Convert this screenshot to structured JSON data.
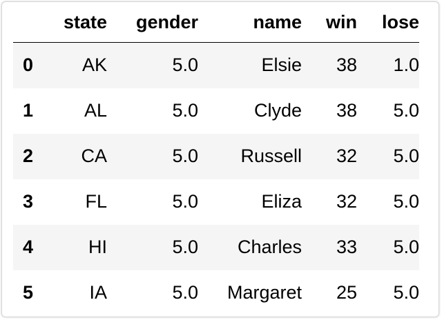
{
  "table": {
    "columns": [
      "state",
      "gender",
      "name",
      "win",
      "lose"
    ],
    "rows": [
      {
        "index": "0",
        "state": "AK",
        "gender": "5.0",
        "name": "Elsie",
        "win": "38",
        "lose": "1.0"
      },
      {
        "index": "1",
        "state": "AL",
        "gender": "5.0",
        "name": "Clyde",
        "win": "38",
        "lose": "5.0"
      },
      {
        "index": "2",
        "state": "CA",
        "gender": "5.0",
        "name": "Russell",
        "win": "32",
        "lose": "5.0"
      },
      {
        "index": "3",
        "state": "FL",
        "gender": "5.0",
        "name": "Eliza",
        "win": "32",
        "lose": "5.0"
      },
      {
        "index": "4",
        "state": "HI",
        "gender": "5.0",
        "name": "Charles",
        "win": "33",
        "lose": "5.0"
      },
      {
        "index": "5",
        "state": "IA",
        "gender": "5.0",
        "name": "Margaret",
        "win": "25",
        "lose": "5.0"
      }
    ]
  },
  "colors": {
    "stripe": "#f5f5f5",
    "header_rule": "#000000",
    "frame_border": "#d5d5d5"
  }
}
